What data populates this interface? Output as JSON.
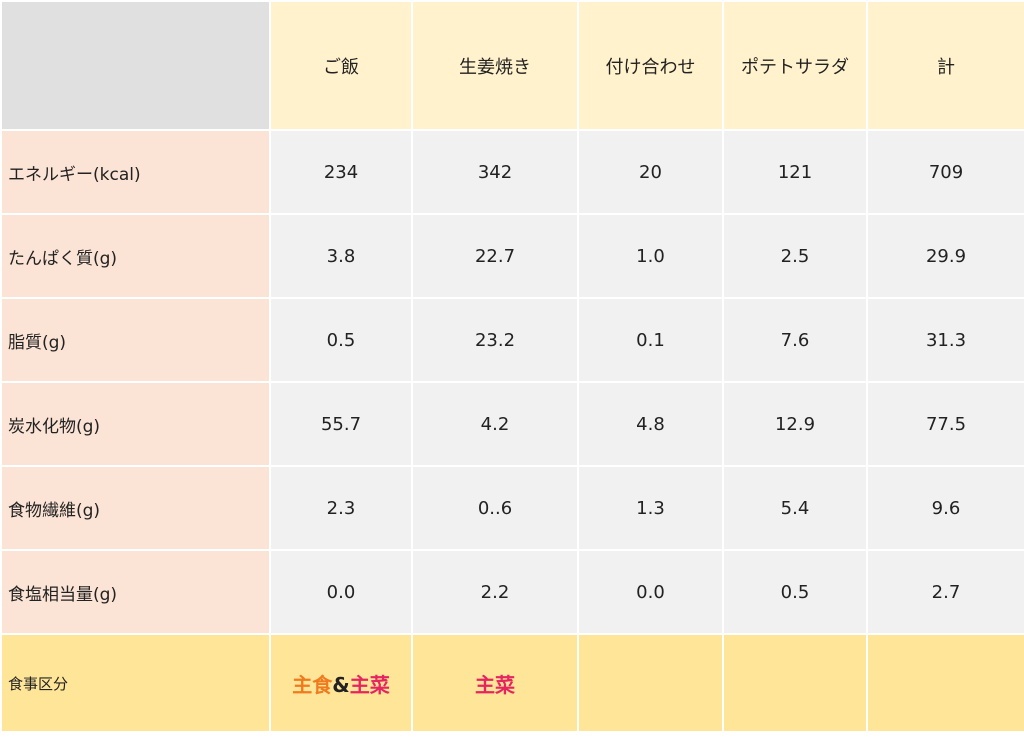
{
  "header": {
    "corner": "",
    "columns": [
      "ご飯",
      "生姜焼き",
      "付け合わせ",
      "ポテトサラダ",
      "計"
    ]
  },
  "rows": [
    {
      "label": "エネルギー(kcal)",
      "values": [
        "234",
        "342",
        "20",
        "121",
        "709"
      ]
    },
    {
      "label": "たんぱく質(g)",
      "values": [
        "3.8",
        "22.7",
        "1.0",
        "2.5",
        "29.9"
      ]
    },
    {
      "label": "脂質(g)",
      "values": [
        "0.5",
        "23.2",
        "0.1",
        "7.6",
        "31.3"
      ]
    },
    {
      "label": "炭水化物(g)",
      "values": [
        "55.7",
        "4.2",
        "4.8",
        "12.9",
        "77.5"
      ]
    },
    {
      "label": "食物繊維(g)",
      "values": [
        "2.3",
        "0..6",
        "1.3",
        "5.4",
        "9.6"
      ]
    },
    {
      "label": "食塩相当量(g)",
      "values": [
        "0.0",
        "2.2",
        "0.0",
        "0.5",
        "2.7"
      ]
    }
  ],
  "footer": {
    "label": "食事区分",
    "rice": {
      "main": "主食",
      "amp": "&",
      "side": "主菜"
    },
    "ginger": {
      "side": "主菜"
    }
  },
  "colors": {
    "header_bg": "#fff2cc",
    "corner_bg": "#e0e0e0",
    "label_bg": "#fbe4d5",
    "cell_bg": "#f1f1f1",
    "footer_bg": "#ffe598",
    "staple_color": "#f07b1e",
    "main_dish_color": "#e6245f"
  }
}
